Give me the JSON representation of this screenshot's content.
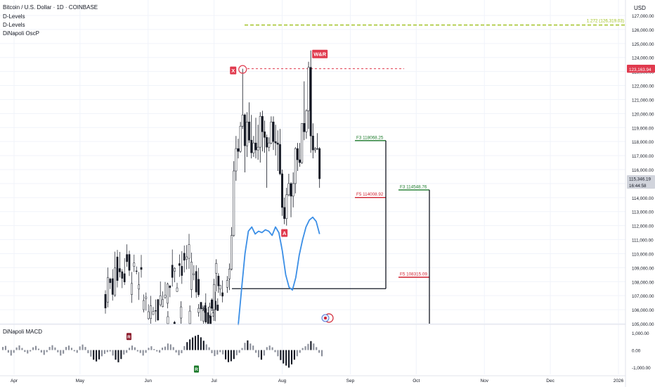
{
  "header": {
    "symbol_title": "Bitcoin / U.S. Dollar · 1D · COINBASE",
    "indicators": [
      "D-Levels",
      "D-Levels",
      "DiNapoli OscP"
    ],
    "currency": "USD"
  },
  "macd_panel": {
    "title": "DiNapoli MACD"
  },
  "colors": {
    "up_candle": "#ffffff",
    "down_candle": "#131722",
    "grid": "#f0f3fa",
    "fib_green": "#1b7a2a",
    "fib_red": "#d01f2e",
    "target_yellowgreen": "#9dbf19",
    "osc_blue": "#3a8ee6",
    "marker_red": "#e03a4e",
    "axis_text": "#131722",
    "price_tag_gray": "#d1d4dc"
  },
  "chart_data": {
    "type": "candlestick",
    "title": "Bitcoin / U.S. Dollar · 1D · COINBASE",
    "price_axis": {
      "ylim": [
        104700,
        127600
      ],
      "ticks": [
        "127,000.00",
        "126,000.00",
        "125,000.00",
        "124,000.00",
        "123,000.00",
        "122,000.00",
        "121,000.00",
        "120,000.00",
        "119,000.00",
        "118,000.00",
        "117,000.00",
        "116,000.00",
        "115,000.00",
        "114,000.00",
        "113,000.00",
        "112,000.00",
        "111,000.00",
        "110,000.00",
        "109,000.00",
        "108,000.00",
        "107,000.00",
        "106,000.00",
        "105,000.00"
      ],
      "tags": [
        {
          "label": "123,234.60",
          "value": 123234.6,
          "color": "#e03a4e"
        },
        {
          "label": "123,163.94",
          "value": 123163.94,
          "color": "#e03a4e"
        },
        {
          "label": "115,346.19",
          "value": 115346.19,
          "color": "#d1d4dc"
        },
        {
          "label": "16:44:58",
          "value": 114880,
          "color": "#d1d4dc"
        }
      ]
    },
    "time_axis": {
      "labels": [
        "Apr",
        "May",
        "Jun",
        "Jul",
        "Aug",
        "Sep",
        "Oct",
        "Nov",
        "Dec",
        "2026"
      ]
    },
    "candles": [
      {
        "date": "2025-06-10",
        "o": 104900,
        "h": 105900,
        "l": 104700,
        "c": 105500
      },
      {
        "date": "2025-06-13",
        "o": 105100,
        "h": 105200,
        "l": 104700,
        "c": 104800
      },
      {
        "date": "2025-06-16",
        "o": 105400,
        "h": 106600,
        "l": 105000,
        "c": 106200
      },
      {
        "date": "2025-06-20",
        "o": 105000,
        "h": 106300,
        "l": 104700,
        "c": 105900
      },
      {
        "date": "2025-06-24",
        "o": 105800,
        "h": 106400,
        "l": 105500,
        "c": 106100
      },
      {
        "date": "2025-06-26",
        "o": 106100,
        "h": 106300,
        "l": 105900,
        "c": 106100
      },
      {
        "date": "2025-06-27",
        "o": 106300,
        "h": 106500,
        "l": 105500,
        "c": 105800
      },
      {
        "date": "2025-06-29",
        "o": 105600,
        "h": 106500,
        "l": 105400,
        "c": 106200
      },
      {
        "date": "2025-06-30",
        "o": 106700,
        "h": 106800,
        "l": 105900,
        "c": 106100
      },
      {
        "date": "2025-07-01",
        "o": 106000,
        "h": 108200,
        "l": 105200,
        "c": 107800
      },
      {
        "date": "2025-07-02",
        "o": 108600,
        "h": 109600,
        "l": 107300,
        "c": 109300
      },
      {
        "date": "2025-07-03",
        "o": 108400,
        "h": 108600,
        "l": 107200,
        "c": 107700
      },
      {
        "date": "2025-07-07",
        "o": 107600,
        "h": 108400,
        "l": 107200,
        "c": 108100
      },
      {
        "date": "2025-07-08",
        "o": 108200,
        "h": 109300,
        "l": 107400,
        "c": 108900
      },
      {
        "date": "2025-07-09",
        "o": 108900,
        "h": 111900,
        "l": 108800,
        "c": 111300
      },
      {
        "date": "2025-07-10",
        "o": 111300,
        "h": 116600,
        "l": 111200,
        "c": 115900
      },
      {
        "date": "2025-07-11",
        "o": 115900,
        "h": 118400,
        "l": 115200,
        "c": 117500
      },
      {
        "date": "2025-07-12",
        "o": 117500,
        "h": 118200,
        "l": 116800,
        "c": 117300
      },
      {
        "date": "2025-07-13",
        "o": 117300,
        "h": 119400,
        "l": 117200,
        "c": 119100
      },
      {
        "date": "2025-07-14",
        "o": 119100,
        "h": 123200,
        "l": 118900,
        "c": 119900
      },
      {
        "date": "2025-07-15",
        "o": 119900,
        "h": 120000,
        "l": 115800,
        "c": 117700
      },
      {
        "date": "2025-07-16",
        "o": 117700,
        "h": 120100,
        "l": 116900,
        "c": 119400
      },
      {
        "date": "2025-07-17",
        "o": 119400,
        "h": 120800,
        "l": 117900,
        "c": 118100
      },
      {
        "date": "2025-07-18",
        "o": 118100,
        "h": 119900,
        "l": 116800,
        "c": 117200
      },
      {
        "date": "2025-07-19",
        "o": 117200,
        "h": 118400,
        "l": 116900,
        "c": 117900
      },
      {
        "date": "2025-07-20",
        "o": 117900,
        "h": 119700,
        "l": 116800,
        "c": 117400
      },
      {
        "date": "2025-07-21",
        "o": 117400,
        "h": 119200,
        "l": 116700,
        "c": 117600
      },
      {
        "date": "2025-07-22",
        "o": 117600,
        "h": 120100,
        "l": 116500,
        "c": 119800
      },
      {
        "date": "2025-07-23",
        "o": 119800,
        "h": 120200,
        "l": 117300,
        "c": 118700
      },
      {
        "date": "2025-07-24",
        "o": 118700,
        "h": 119500,
        "l": 117200,
        "c": 118300
      },
      {
        "date": "2025-07-25",
        "o": 118300,
        "h": 118500,
        "l": 114700,
        "c": 117600
      },
      {
        "date": "2025-07-26",
        "o": 117600,
        "h": 118300,
        "l": 117300,
        "c": 117900
      },
      {
        "date": "2025-07-27",
        "o": 117900,
        "h": 119800,
        "l": 117800,
        "c": 119400
      },
      {
        "date": "2025-07-28",
        "o": 119400,
        "h": 119800,
        "l": 117400,
        "c": 118000
      },
      {
        "date": "2025-07-29",
        "o": 118000,
        "h": 119200,
        "l": 117000,
        "c": 117900
      },
      {
        "date": "2025-07-30",
        "o": 117900,
        "h": 118800,
        "l": 115900,
        "c": 117800
      },
      {
        "date": "2025-07-31",
        "o": 117800,
        "h": 118900,
        "l": 115600,
        "c": 115700
      },
      {
        "date": "2025-08-01",
        "o": 115700,
        "h": 116000,
        "l": 112700,
        "c": 113300
      },
      {
        "date": "2025-08-02",
        "o": 113300,
        "h": 114000,
        "l": 112100,
        "c": 112500
      },
      {
        "date": "2025-08-03",
        "o": 112500,
        "h": 114700,
        "l": 112000,
        "c": 114200
      },
      {
        "date": "2025-08-04",
        "o": 114200,
        "h": 115700,
        "l": 114100,
        "c": 115000
      },
      {
        "date": "2025-08-05",
        "o": 115000,
        "h": 115100,
        "l": 112600,
        "c": 114100
      },
      {
        "date": "2025-08-06",
        "o": 114100,
        "h": 115800,
        "l": 113300,
        "c": 115000
      },
      {
        "date": "2025-08-07",
        "o": 115000,
        "h": 117600,
        "l": 114300,
        "c": 117500
      },
      {
        "date": "2025-08-08",
        "o": 117500,
        "h": 117900,
        "l": 115900,
        "c": 116700
      },
      {
        "date": "2025-08-09",
        "o": 116700,
        "h": 117900,
        "l": 116200,
        "c": 116500
      },
      {
        "date": "2025-08-10",
        "o": 116500,
        "h": 119300,
        "l": 116400,
        "c": 119300
      },
      {
        "date": "2025-08-11",
        "o": 119300,
        "h": 122300,
        "l": 118100,
        "c": 118700
      },
      {
        "date": "2025-08-12",
        "o": 118700,
        "h": 120300,
        "l": 118200,
        "c": 120200
      },
      {
        "date": "2025-08-13",
        "o": 120200,
        "h": 123700,
        "l": 118900,
        "c": 123300
      },
      {
        "date": "2025-08-14",
        "o": 123300,
        "h": 124500,
        "l": 117200,
        "c": 118400
      },
      {
        "date": "2025-08-15",
        "o": 118400,
        "h": 119300,
        "l": 116800,
        "c": 117400
      },
      {
        "date": "2025-08-16",
        "o": 117400,
        "h": 117600,
        "l": 117200,
        "c": 117500
      },
      {
        "date": "2025-08-17",
        "o": 117500,
        "h": 118600,
        "l": 117400,
        "c": 117500
      },
      {
        "date": "2025-08-18",
        "o": 117500,
        "h": 117600,
        "l": 114700,
        "c": 115346
      }
    ],
    "annotations": [
      {
        "label": "X",
        "price": 123200,
        "color": "#e03a4e"
      },
      {
        "label": "A",
        "price": 112000,
        "color": "#e03a4e"
      },
      {
        "label": "W&R",
        "price": 124500,
        "color": "#e03a4e"
      }
    ],
    "levels": [
      {
        "label": "1.272 (126,319.03)",
        "price": 126319.03,
        "color": "#9dbf19",
        "style": "dashed"
      },
      {
        "label": "F3",
        "value": "118068.25",
        "price": 118068.25,
        "color": "#1b7a2a"
      },
      {
        "label": "F5",
        "value": "114008.92",
        "price": 114008.92,
        "color": "#d01f2e"
      },
      {
        "label": "F3",
        "value": "114548.76",
        "price": 114548.76,
        "color": "#1b7a2a"
      },
      {
        "label": "F5",
        "value": "108315.09",
        "price": 108315.09,
        "color": "#d01f2e"
      }
    ],
    "resistance_line": {
      "price": 123200,
      "color": "#e03a4e",
      "style": "dashed"
    },
    "oscillator": {
      "name": "DiNapoli OscP",
      "color": "#3a8ee6",
      "values": [
        104900,
        107500,
        110000,
        111600,
        111900,
        111400,
        111600,
        111500,
        111700,
        111600,
        111300,
        111900,
        111500,
        110200,
        108500,
        107600,
        107400,
        108300,
        109900,
        111000,
        111900,
        112400,
        112600,
        112300,
        111400
      ]
    },
    "macd": {
      "title": "DiNapoli MACD",
      "ylim": [
        -1100,
        1600
      ],
      "ticks": [
        "1,000.00",
        "0.00",
        "-1,000.00"
      ],
      "histogram": [
        180,
        240,
        -150,
        -320,
        -160,
        150,
        270,
        120,
        -110,
        -200,
        -80,
        160,
        240,
        80,
        -140,
        -280,
        -120,
        180,
        280,
        150,
        -130,
        -320,
        -210,
        180,
        260,
        130,
        -70,
        -160,
        210,
        320,
        180,
        -180,
        -380,
        -560,
        -660,
        -540,
        -360,
        -220,
        -120,
        -80,
        -320,
        -560,
        -710,
        -520,
        -260,
        -160,
        130,
        260,
        160,
        -80,
        -170,
        -320,
        -160,
        130,
        220,
        60,
        -80,
        -150,
        140,
        200,
        380,
        330,
        170,
        -140,
        -300,
        -180,
        230,
        460,
        620,
        730,
        820,
        880,
        740,
        540,
        330,
        160,
        -180,
        -350,
        -260,
        -120,
        -250,
        -540,
        -700,
        -650,
        -520,
        -300,
        -160,
        120,
        420,
        560,
        380,
        260,
        -160,
        -420,
        -560,
        -320,
        170,
        260,
        160,
        -120,
        -360,
        -580,
        -780,
        -900,
        -1020,
        -830,
        -560,
        -360,
        -160,
        120,
        220,
        360,
        520,
        380,
        170,
        -160,
        -360
      ],
      "markers": [
        {
          "label": "R",
          "value": 620,
          "color": "#8b1a2a"
        },
        {
          "label": "R",
          "value": -980,
          "color": "#1b7a2a"
        }
      ]
    }
  }
}
